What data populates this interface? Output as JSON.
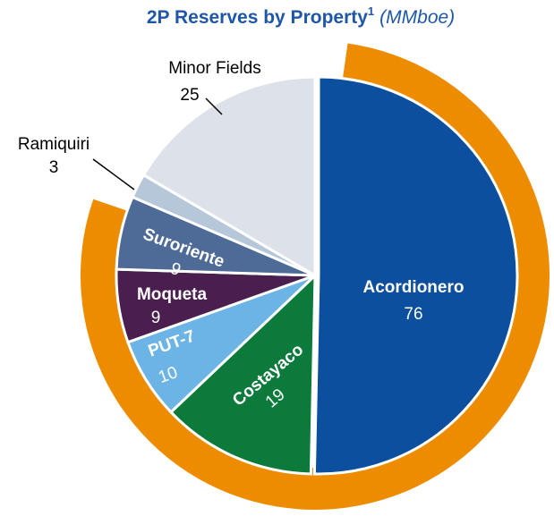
{
  "chart_data": {
    "type": "pie",
    "title": "2P Reserves by Property",
    "title_superscript": "1",
    "subtitle": "(MMboe)",
    "categories": [
      "Acordionero",
      "Costayaco",
      "PUT-7",
      "Moqueta",
      "Suroriente",
      "Ramiquiri",
      "Minor Fields"
    ],
    "values": [
      76,
      19,
      10,
      9,
      9,
      3,
      25
    ],
    "colors": [
      "#0b4f9e",
      "#0b7a3b",
      "#6cb4e6",
      "#4a1e4f",
      "#4e6b98",
      "#b7c7da",
      "#dde2ea"
    ]
  }
}
